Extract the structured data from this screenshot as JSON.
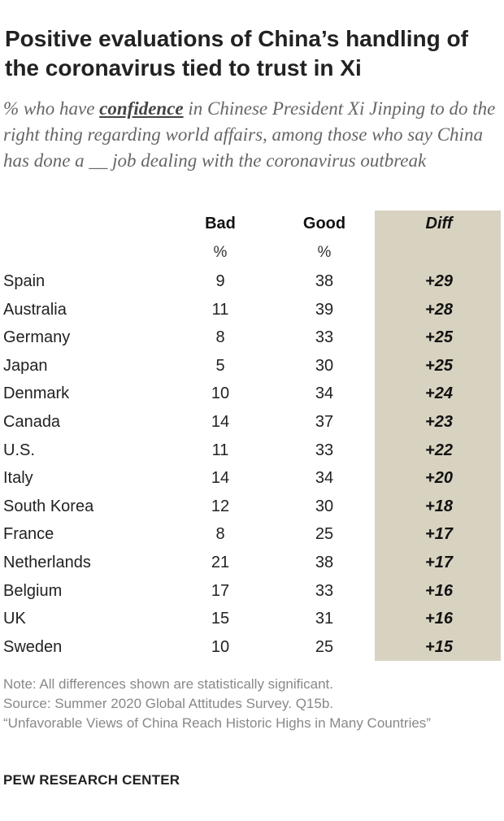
{
  "title": "Positive evaluations of China’s handling of the coronavirus tied to trust in Xi",
  "subtitle": {
    "before": "% who have ",
    "emphasis": "confidence",
    "after": " in Chinese President Xi Jinping to do the right thing regarding world affairs, among those who say China has done a __ job dealing with the coronavirus outbreak"
  },
  "columns": {
    "bad": "Bad",
    "good": "Good",
    "diff": "Diff",
    "bad_unit": "%",
    "good_unit": "%"
  },
  "chart_data": {
    "type": "table",
    "title": "Positive evaluations of China’s handling of the coronavirus tied to trust in Xi",
    "columns": [
      "Bad",
      "Good",
      "Diff"
    ],
    "rows": [
      {
        "country": "Spain",
        "bad": "9",
        "good": "38",
        "diff": "+29"
      },
      {
        "country": "Australia",
        "bad": "11",
        "good": "39",
        "diff": "+28"
      },
      {
        "country": "Germany",
        "bad": "8",
        "good": "33",
        "diff": "+25"
      },
      {
        "country": "Japan",
        "bad": "5",
        "good": "30",
        "diff": "+25"
      },
      {
        "country": "Denmark",
        "bad": "10",
        "good": "34",
        "diff": "+24"
      },
      {
        "country": "Canada",
        "bad": "14",
        "good": "37",
        "diff": "+23"
      },
      {
        "country": "U.S.",
        "bad": "11",
        "good": "33",
        "diff": "+22"
      },
      {
        "country": "Italy",
        "bad": "14",
        "good": "34",
        "diff": "+20"
      },
      {
        "country": "South Korea",
        "bad": "12",
        "good": "30",
        "diff": "+18"
      },
      {
        "country": "France",
        "bad": "8",
        "good": "25",
        "diff": "+17"
      },
      {
        "country": "Netherlands",
        "bad": "21",
        "good": "38",
        "diff": "+17"
      },
      {
        "country": "Belgium",
        "bad": "17",
        "good": "33",
        "diff": "+16"
      },
      {
        "country": "UK",
        "bad": "15",
        "good": "31",
        "diff": "+16"
      },
      {
        "country": "Sweden",
        "bad": "10",
        "good": "25",
        "diff": "+15"
      }
    ]
  },
  "notes": {
    "note": "Note: All differences shown are statistically significant.",
    "source": "Source: Summer 2020 Global Attitudes Survey. Q15b.",
    "report": "“Unfavorable Views of China Reach Historic Highs in Many Countries”"
  },
  "brand": "PEW RESEARCH CENTER"
}
